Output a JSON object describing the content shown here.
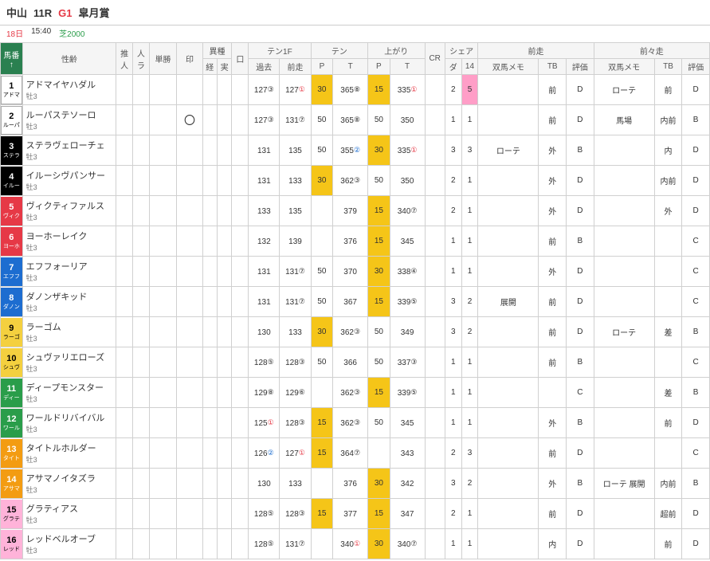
{
  "header": {
    "track": "中山",
    "raceNo": "11R",
    "grade": "G1",
    "raceName": "皐月賞",
    "date": "18日",
    "time": "15:40",
    "condition": "芝2000"
  },
  "cols": {
    "uma": "馬番",
    "sei": "性齢",
    "sui": "推人",
    "jin": "人ラ",
    "tan": "単勝",
    "in": "印",
    "ishu": "異種",
    "kei": "経",
    "jitsu": "実",
    "kuchi": "口",
    "ten1f": "テン1F",
    "kako": "過去",
    "zen": "前走",
    "tenP": "テン",
    "agP": "上がり",
    "P": "P",
    "T": "T",
    "cr": "CR",
    "share": "シェア",
    "da": "ダ",
    "s14": "14",
    "zenso": "前走",
    "zenzen": "前々走",
    "memo": "双馬メモ",
    "tb": "TB",
    "hyo": "評価"
  },
  "frameColors": {
    "1": "white-box",
    "2": "white-box",
    "3": "black-box",
    "4": "black-box",
    "5": "red-box",
    "6": "red-box",
    "7": "blue-box",
    "8": "blue-box",
    "9": "yellow-box",
    "10": "yellow-box",
    "11": "green-box",
    "12": "green-box",
    "13": "orange-box",
    "14": "orange-box",
    "15": "pink-box",
    "16": "pink-box"
  },
  "rows": [
    {
      "num": "1",
      "abbr": "アドマ",
      "name": "アドマイヤハダル",
      "sub": "牡3",
      "mark": "",
      "kako": "127",
      "kakoC": "③",
      "kakoCol": "",
      "zen": "127",
      "zenC": "①",
      "zenCol": "red-txt",
      "tp": "30",
      "tpH": "hl-gold",
      "tt": "365",
      "ttC": "⑧",
      "ap": "15",
      "apH": "hl-gold",
      "at": "335",
      "atC": "①",
      "atCol": "red-txt",
      "da": "2",
      "s14": "5",
      "s14H": "hl-pink",
      "memo1": "",
      "tb1": "前",
      "hy1": "D",
      "memo2": "ローテ",
      "tb2": "前",
      "hy2": "D"
    },
    {
      "num": "2",
      "abbr": "ルーパ",
      "name": "ルーパステソーロ",
      "sub": "牡3",
      "mark": "〇",
      "kako": "127",
      "kakoC": "③",
      "kakoCol": "",
      "zen": "131",
      "zenC": "⑦",
      "zenCol": "",
      "tp": "50",
      "tpH": "",
      "tt": "365",
      "ttC": "⑧",
      "ap": "50",
      "apH": "",
      "at": "350",
      "atC": "",
      "atCol": "",
      "da": "1",
      "s14": "1",
      "s14H": "",
      "memo1": "",
      "tb1": "前",
      "hy1": "D",
      "memo2": "馬場",
      "tb2": "内前",
      "hy2": "B"
    },
    {
      "num": "3",
      "abbr": "ステラ",
      "name": "ステラヴェローチェ",
      "sub": "牡3",
      "mark": "",
      "kako": "131",
      "kakoC": "",
      "kakoCol": "",
      "zen": "135",
      "zenC": "",
      "zenCol": "",
      "tp": "50",
      "tpH": "",
      "tt": "355",
      "ttC": "②",
      "ttCol": "blue-txt",
      "ap": "30",
      "apH": "hl-gold",
      "at": "335",
      "atC": "①",
      "atCol": "red-txt",
      "da": "3",
      "s14": "3",
      "s14H": "",
      "memo1": "ローテ",
      "tb1": "外",
      "hy1": "B",
      "memo2": "",
      "tb2": "内",
      "hy2": "D"
    },
    {
      "num": "4",
      "abbr": "イルー",
      "name": "イルーシヴパンサー",
      "sub": "牡3",
      "mark": "",
      "kako": "131",
      "kakoC": "",
      "kakoCol": "",
      "zen": "133",
      "zenC": "",
      "zenCol": "",
      "tp": "30",
      "tpH": "hl-gold",
      "tt": "362",
      "ttC": "③",
      "ap": "50",
      "apH": "",
      "at": "350",
      "atC": "",
      "atCol": "",
      "da": "2",
      "s14": "1",
      "s14H": "",
      "memo1": "",
      "tb1": "外",
      "hy1": "D",
      "memo2": "",
      "tb2": "内前",
      "hy2": "D"
    },
    {
      "num": "5",
      "abbr": "ヴィク",
      "name": "ヴィクティファルス",
      "sub": "牡3",
      "mark": "",
      "kako": "133",
      "kakoC": "",
      "kakoCol": "",
      "zen": "135",
      "zenC": "",
      "zenCol": "",
      "tp": "",
      "tpH": "",
      "tt": "379",
      "ttC": "",
      "ap": "15",
      "apH": "hl-gold",
      "at": "340",
      "atC": "⑦",
      "atCol": "",
      "da": "2",
      "s14": "1",
      "s14H": "",
      "memo1": "",
      "tb1": "外",
      "hy1": "D",
      "memo2": "",
      "tb2": "外",
      "hy2": "D"
    },
    {
      "num": "6",
      "abbr": "ヨーホ",
      "name": "ヨーホーレイク",
      "sub": "牡3",
      "mark": "",
      "kako": "132",
      "kakoC": "",
      "kakoCol": "",
      "zen": "139",
      "zenC": "",
      "zenCol": "",
      "tp": "",
      "tpH": "",
      "tt": "376",
      "ttC": "",
      "ap": "15",
      "apH": "hl-gold",
      "at": "345",
      "atC": "",
      "atCol": "",
      "da": "1",
      "s14": "1",
      "s14H": "",
      "memo1": "",
      "tb1": "前",
      "hy1": "B",
      "memo2": "",
      "tb2": "",
      "hy2": "C"
    },
    {
      "num": "7",
      "abbr": "エフフ",
      "name": "エフフォーリア",
      "sub": "牡3",
      "mark": "",
      "kako": "131",
      "kakoC": "",
      "kakoCol": "",
      "zen": "131",
      "zenC": "⑦",
      "zenCol": "",
      "tp": "50",
      "tpH": "",
      "tt": "370",
      "ttC": "",
      "ap": "30",
      "apH": "hl-gold",
      "at": "338",
      "atC": "④",
      "atCol": "",
      "da": "1",
      "s14": "1",
      "s14H": "",
      "memo1": "",
      "tb1": "外",
      "hy1": "D",
      "memo2": "",
      "tb2": "",
      "hy2": "C"
    },
    {
      "num": "8",
      "abbr": "ダノン",
      "name": "ダノンザキッド",
      "sub": "牡3",
      "mark": "",
      "kako": "131",
      "kakoC": "",
      "kakoCol": "",
      "zen": "131",
      "zenC": "⑦",
      "zenCol": "",
      "tp": "50",
      "tpH": "",
      "tt": "367",
      "ttC": "",
      "ap": "15",
      "apH": "hl-gold",
      "at": "339",
      "atC": "⑤",
      "atCol": "",
      "da": "3",
      "s14": "2",
      "s14H": "",
      "memo1": "展開",
      "tb1": "前",
      "hy1": "D",
      "memo2": "",
      "tb2": "",
      "hy2": "C"
    },
    {
      "num": "9",
      "abbr": "ラーゴ",
      "name": "ラーゴム",
      "sub": "牡3",
      "mark": "",
      "kako": "130",
      "kakoC": "",
      "kakoCol": "",
      "zen": "133",
      "zenC": "",
      "zenCol": "",
      "tp": "30",
      "tpH": "hl-gold",
      "tt": "362",
      "ttC": "③",
      "ap": "50",
      "apH": "",
      "at": "349",
      "atC": "",
      "atCol": "",
      "da": "3",
      "s14": "2",
      "s14H": "",
      "memo1": "",
      "tb1": "前",
      "hy1": "D",
      "memo2": "ローテ",
      "tb2": "差",
      "hy2": "B"
    },
    {
      "num": "10",
      "abbr": "シュヴ",
      "name": "シュヴァリエローズ",
      "sub": "牡3",
      "mark": "",
      "kako": "128",
      "kakoC": "⑤",
      "kakoCol": "",
      "zen": "128",
      "zenC": "③",
      "zenCol": "",
      "tp": "50",
      "tpH": "",
      "tt": "366",
      "ttC": "",
      "ap": "50",
      "apH": "",
      "at": "337",
      "atC": "③",
      "atCol": "",
      "da": "1",
      "s14": "1",
      "s14H": "",
      "memo1": "",
      "tb1": "前",
      "hy1": "B",
      "memo2": "",
      "tb2": "",
      "hy2": "C"
    },
    {
      "num": "11",
      "abbr": "ディー",
      "name": "ディープモンスター",
      "sub": "牡3",
      "mark": "",
      "kako": "129",
      "kakoC": "⑧",
      "kakoCol": "",
      "zen": "129",
      "zenC": "⑥",
      "zenCol": "",
      "tp": "",
      "tpH": "",
      "tt": "362",
      "ttC": "③",
      "ap": "15",
      "apH": "hl-gold",
      "at": "339",
      "atC": "⑤",
      "atCol": "",
      "da": "1",
      "s14": "1",
      "s14H": "",
      "memo1": "",
      "tb1": "",
      "hy1": "C",
      "memo2": "",
      "tb2": "差",
      "hy2": "B"
    },
    {
      "num": "12",
      "abbr": "ワール",
      "name": "ワールドリバイバル",
      "sub": "牡3",
      "mark": "",
      "kako": "125",
      "kakoC": "①",
      "kakoCol": "red-txt",
      "zen": "128",
      "zenC": "③",
      "zenCol": "",
      "tp": "15",
      "tpH": "hl-gold",
      "tt": "362",
      "ttC": "③",
      "ap": "50",
      "apH": "",
      "at": "345",
      "atC": "",
      "atCol": "",
      "da": "1",
      "s14": "1",
      "s14H": "",
      "memo1": "",
      "tb1": "外",
      "hy1": "B",
      "memo2": "",
      "tb2": "前",
      "hy2": "D"
    },
    {
      "num": "13",
      "abbr": "タイト",
      "name": "タイトルホルダー",
      "sub": "牡3",
      "mark": "",
      "kako": "126",
      "kakoC": "②",
      "kakoCol": "blue-txt",
      "zen": "127",
      "zenC": "①",
      "zenCol": "red-txt",
      "tp": "15",
      "tpH": "hl-gold",
      "tt": "364",
      "ttC": "⑦",
      "ap": "",
      "apH": "",
      "at": "343",
      "atC": "",
      "atCol": "",
      "da": "2",
      "s14": "3",
      "s14H": "",
      "memo1": "",
      "tb1": "前",
      "hy1": "D",
      "memo2": "",
      "tb2": "",
      "hy2": "C"
    },
    {
      "num": "14",
      "abbr": "アサマ",
      "name": "アサマノイタズラ",
      "sub": "牡3",
      "mark": "",
      "kako": "130",
      "kakoC": "",
      "kakoCol": "",
      "zen": "133",
      "zenC": "",
      "zenCol": "",
      "tp": "",
      "tpH": "",
      "tt": "376",
      "ttC": "",
      "ap": "30",
      "apH": "hl-gold",
      "at": "342",
      "atC": "",
      "atCol": "",
      "da": "3",
      "s14": "2",
      "s14H": "",
      "memo1": "",
      "tb1": "外",
      "hy1": "B",
      "memo2": "ローテ 展開",
      "tb2": "内前",
      "hy2": "B"
    },
    {
      "num": "15",
      "abbr": "グラテ",
      "name": "グラティアス",
      "sub": "牡3",
      "mark": "",
      "kako": "128",
      "kakoC": "⑤",
      "kakoCol": "",
      "zen": "128",
      "zenC": "③",
      "zenCol": "",
      "tp": "15",
      "tpH": "hl-gold",
      "tt": "377",
      "ttC": "",
      "ap": "15",
      "apH": "hl-gold",
      "at": "347",
      "atC": "",
      "atCol": "",
      "da": "2",
      "s14": "1",
      "s14H": "",
      "memo1": "",
      "tb1": "前",
      "hy1": "D",
      "memo2": "",
      "tb2": "超前",
      "hy2": "D"
    },
    {
      "num": "16",
      "abbr": "レッド",
      "name": "レッドベルオーブ",
      "sub": "牡3",
      "mark": "",
      "kako": "128",
      "kakoC": "⑤",
      "kakoCol": "",
      "zen": "131",
      "zenC": "⑦",
      "zenCol": "",
      "tp": "",
      "tpH": "",
      "tt": "340",
      "ttC": "①",
      "ttCol": "red-txt",
      "ap": "30",
      "apH": "hl-gold",
      "at": "340",
      "atC": "⑦",
      "atCol": "",
      "da": "1",
      "s14": "1",
      "s14H": "",
      "memo1": "",
      "tb1": "内",
      "hy1": "D",
      "memo2": "",
      "tb2": "前",
      "hy2": "D"
    }
  ]
}
